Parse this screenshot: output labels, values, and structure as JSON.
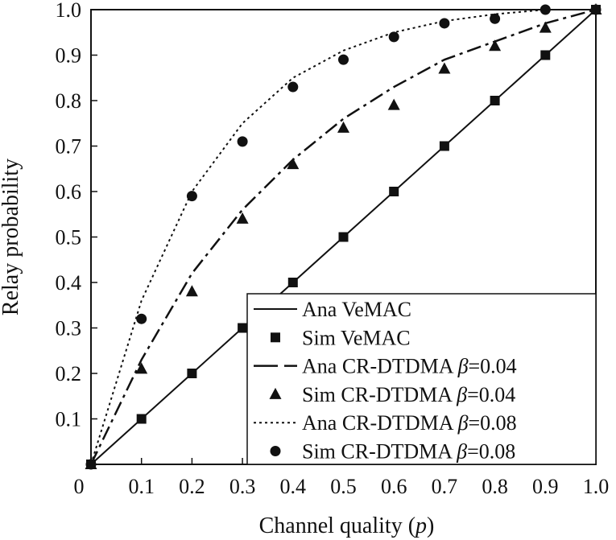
{
  "chart_data": {
    "type": "line",
    "title": "",
    "xlabel": "Channel quality (p)",
    "xlabel_parts": {
      "main": "Channel quality (",
      "var": "p",
      "end": ")"
    },
    "ylabel": "Relay probability",
    "xlim": [
      0,
      1.0
    ],
    "ylim": [
      0,
      1.0
    ],
    "xticks": [
      0.1,
      0.2,
      0.3,
      0.4,
      0.5,
      0.6,
      0.7,
      0.8,
      0.9,
      1.0
    ],
    "xtick_labels": [
      "0.1",
      "0.2",
      "0.3",
      "0.4",
      "0.5",
      "0.6",
      "0.7",
      "0.8",
      "0.9",
      "1.0"
    ],
    "yticks": [
      0.1,
      0.2,
      0.3,
      0.4,
      0.5,
      0.6,
      0.7,
      0.8,
      0.9,
      1.0
    ],
    "ytick_labels": [
      "0.1",
      "0.2",
      "0.3",
      "0.4",
      "0.5",
      "0.6",
      "0.7",
      "0.8",
      "0.9",
      "1.0"
    ],
    "origin_label": "0",
    "grid": false,
    "legend_position": "bottom-right",
    "series": [
      {
        "name": "Ana VeMAC",
        "label_parts": {
          "text": "Ana VeMAC",
          "sym": "",
          "val": ""
        },
        "style": "solid",
        "x": [
          0,
          0.1,
          0.2,
          0.3,
          0.4,
          0.5,
          0.6,
          0.7,
          0.8,
          0.9,
          1.0
        ],
        "y": [
          0,
          0.1,
          0.2,
          0.3,
          0.4,
          0.5,
          0.6,
          0.7,
          0.8,
          0.9,
          1.0
        ]
      },
      {
        "name": "Sim VeMAC",
        "label_parts": {
          "text": "Sim VeMAC",
          "sym": "",
          "val": ""
        },
        "style": "square",
        "x": [
          0,
          0.1,
          0.2,
          0.3,
          0.4,
          0.5,
          0.6,
          0.7,
          0.8,
          0.9,
          1.0
        ],
        "y": [
          0,
          0.1,
          0.2,
          0.3,
          0.4,
          0.5,
          0.6,
          0.7,
          0.8,
          0.9,
          1.0
        ]
      },
      {
        "name": "Ana CR-DTDMA β=0.04",
        "label_parts": {
          "text": "Ana CR-DTDMA ",
          "sym": "β",
          "val": "=0.04"
        },
        "style": "dashdot",
        "x": [
          0,
          0.1,
          0.2,
          0.3,
          0.4,
          0.5,
          0.6,
          0.7,
          0.8,
          0.9,
          1.0
        ],
        "y": [
          0,
          0.23,
          0.42,
          0.56,
          0.67,
          0.76,
          0.83,
          0.89,
          0.93,
          0.97,
          1.0
        ]
      },
      {
        "name": "Sim CR-DTDMA β=0.04",
        "label_parts": {
          "text": "Sim CR-DTDMA ",
          "sym": "β",
          "val": "=0.04"
        },
        "style": "triangle",
        "x": [
          0,
          0.1,
          0.2,
          0.3,
          0.4,
          0.5,
          0.6,
          0.7,
          0.8,
          0.9,
          1.0
        ],
        "y": [
          0,
          0.21,
          0.38,
          0.54,
          0.66,
          0.74,
          0.79,
          0.87,
          0.92,
          0.96,
          1.0
        ]
      },
      {
        "name": "Ana CR-DTDMA β=0.08",
        "label_parts": {
          "text": "Ana CR-DTDMA ",
          "sym": "β",
          "val": "=0.08"
        },
        "style": "dotted",
        "x": [
          0,
          0.1,
          0.2,
          0.3,
          0.4,
          0.5,
          0.6,
          0.7,
          0.8,
          0.9,
          1.0
        ],
        "y": [
          0,
          0.36,
          0.6,
          0.75,
          0.85,
          0.91,
          0.95,
          0.975,
          0.99,
          1.0,
          1.0
        ]
      },
      {
        "name": "Sim CR-DTDMA β=0.08",
        "label_parts": {
          "text": "Sim CR-DTDMA ",
          "sym": "β",
          "val": "=0.08"
        },
        "style": "circle",
        "x": [
          0,
          0.1,
          0.2,
          0.3,
          0.4,
          0.5,
          0.6,
          0.7,
          0.8,
          0.9,
          1.0
        ],
        "y": [
          0,
          0.32,
          0.59,
          0.71,
          0.83,
          0.89,
          0.94,
          0.97,
          0.98,
          1.0,
          1.0
        ]
      }
    ]
  }
}
